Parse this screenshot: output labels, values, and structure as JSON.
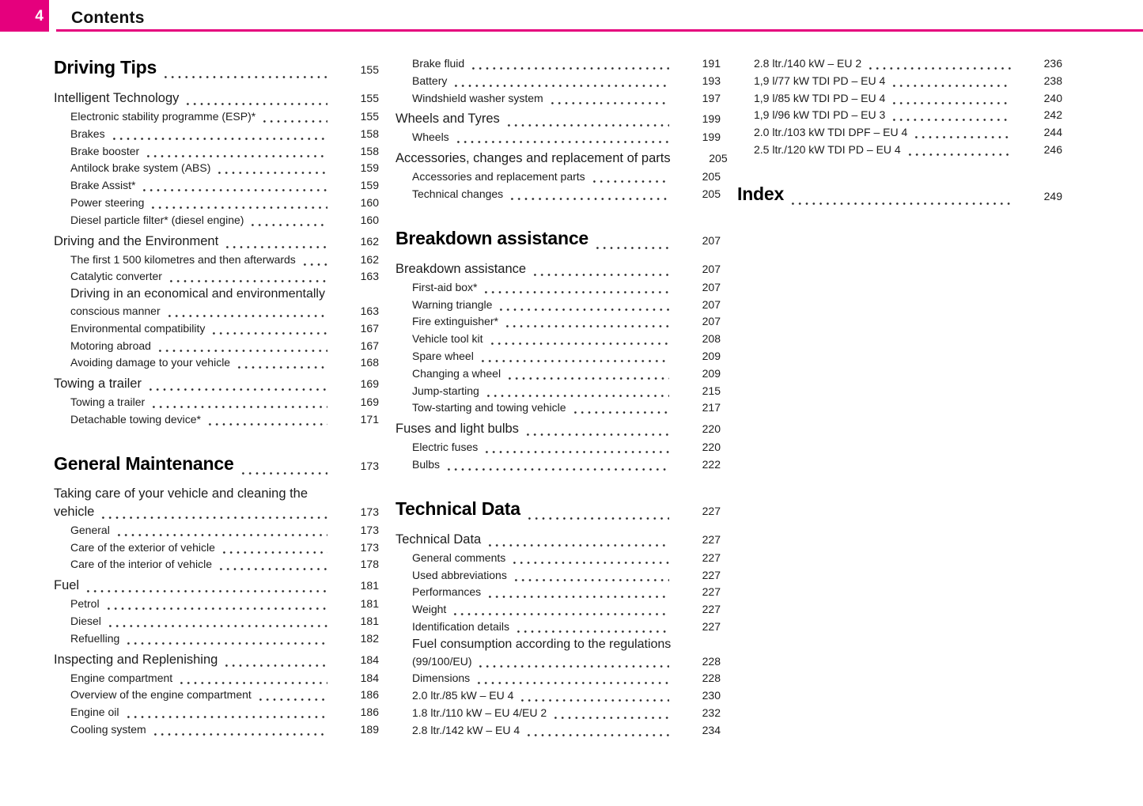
{
  "theme": {
    "accent_color": "#e5007d",
    "text_color": "#1c1c1c",
    "heading_color": "#000000",
    "page_background": "#ffffff"
  },
  "header": {
    "page_number": "4",
    "title": "Contents"
  },
  "columns": [
    {
      "entries": [
        {
          "style": "h1",
          "text": "Driving Tips",
          "page": "155"
        },
        {
          "style": "sec",
          "text": "Intelligent Technology",
          "page": "155"
        },
        {
          "style": "it",
          "text": "Electronic stability programme (ESP)*",
          "page": "155"
        },
        {
          "style": "it",
          "text": "Brakes",
          "page": "158"
        },
        {
          "style": "it",
          "text": "Brake booster",
          "page": "158"
        },
        {
          "style": "it",
          "text": "Antilock brake system (ABS)",
          "page": "159"
        },
        {
          "style": "it",
          "text": "Brake Assist*",
          "page": "159"
        },
        {
          "style": "it",
          "text": "Power steering",
          "page": "160"
        },
        {
          "style": "it",
          "text": "Diesel particle filter* (diesel engine)",
          "page": "160"
        },
        {
          "style": "sec",
          "text": "Driving and the Environment",
          "page": "162"
        },
        {
          "style": "it",
          "text": "The first 1 500 kilometres and then afterwards",
          "page": "162"
        },
        {
          "style": "it",
          "text": "Catalytic converter",
          "page": "163"
        },
        {
          "style": "it",
          "line1": "Driving in an economical and environmentally",
          "text": "conscious manner",
          "page": "163"
        },
        {
          "style": "it",
          "text": "Environmental compatibility",
          "page": "167"
        },
        {
          "style": "it",
          "text": "Motoring abroad",
          "page": "167"
        },
        {
          "style": "it",
          "text": "Avoiding damage to your vehicle",
          "page": "168"
        },
        {
          "style": "sec",
          "text": "Towing a trailer",
          "page": "169"
        },
        {
          "style": "it",
          "text": "Towing a trailer",
          "page": "169"
        },
        {
          "style": "it",
          "text": "Detachable towing device*",
          "page": "171"
        },
        {
          "style": "h1",
          "text": "General Maintenance",
          "page": "173"
        },
        {
          "style": "sec",
          "line1": "Taking care of your vehicle and cleaning the",
          "text": "vehicle",
          "page": "173"
        },
        {
          "style": "it",
          "text": "General",
          "page": "173"
        },
        {
          "style": "it",
          "text": "Care of the exterior of vehicle",
          "page": "173"
        },
        {
          "style": "it",
          "text": "Care of the interior of vehicle",
          "page": "178"
        },
        {
          "style": "sec",
          "text": "Fuel",
          "page": "181"
        },
        {
          "style": "it",
          "text": "Petrol",
          "page": "181"
        },
        {
          "style": "it",
          "text": "Diesel",
          "page": "181"
        },
        {
          "style": "it",
          "text": "Refuelling",
          "page": "182"
        },
        {
          "style": "sec",
          "text": "Inspecting and Replenishing",
          "page": "184"
        },
        {
          "style": "it",
          "text": "Engine compartment",
          "page": "184"
        },
        {
          "style": "it",
          "text": "Overview of the engine compartment",
          "page": "186"
        },
        {
          "style": "it",
          "text": "Engine oil",
          "page": "186"
        },
        {
          "style": "it",
          "text": "Cooling system",
          "page": "189"
        }
      ]
    },
    {
      "entries": [
        {
          "style": "it",
          "text": "Brake fluid",
          "page": "191"
        },
        {
          "style": "it",
          "text": "Battery",
          "page": "193"
        },
        {
          "style": "it",
          "text": "Windshield washer system",
          "page": "197"
        },
        {
          "style": "sec",
          "text": "Wheels and Tyres",
          "page": "199"
        },
        {
          "style": "it",
          "text": "Wheels",
          "page": "199"
        },
        {
          "style": "sec",
          "text": "Accessories, changes and replacement of parts",
          "page": "205"
        },
        {
          "style": "it",
          "text": "Accessories and replacement parts",
          "page": "205"
        },
        {
          "style": "it",
          "text": "Technical changes",
          "page": "205"
        },
        {
          "style": "h1",
          "text": "Breakdown assistance",
          "page": "207"
        },
        {
          "style": "sec",
          "text": "Breakdown assistance",
          "page": "207"
        },
        {
          "style": "it",
          "text": "First-aid box*",
          "page": "207"
        },
        {
          "style": "it",
          "text": "Warning triangle",
          "page": "207"
        },
        {
          "style": "it",
          "text": "Fire extinguisher*",
          "page": "207"
        },
        {
          "style": "it",
          "text": "Vehicle tool kit",
          "page": "208"
        },
        {
          "style": "it",
          "text": "Spare wheel",
          "page": "209"
        },
        {
          "style": "it",
          "text": "Changing a wheel",
          "page": "209"
        },
        {
          "style": "it",
          "text": "Jump-starting",
          "page": "215"
        },
        {
          "style": "it",
          "text": "Tow-starting and towing vehicle",
          "page": "217"
        },
        {
          "style": "sec",
          "text": "Fuses and light bulbs",
          "page": "220"
        },
        {
          "style": "it",
          "text": "Electric fuses",
          "page": "220"
        },
        {
          "style": "it",
          "text": "Bulbs",
          "page": "222"
        },
        {
          "style": "h1",
          "text": "Technical Data",
          "page": "227"
        },
        {
          "style": "sec",
          "text": "Technical Data",
          "page": "227"
        },
        {
          "style": "it",
          "text": "General comments",
          "page": "227"
        },
        {
          "style": "it",
          "text": "Used abbreviations",
          "page": "227"
        },
        {
          "style": "it",
          "text": "Performances",
          "page": "227"
        },
        {
          "style": "it",
          "text": "Weight",
          "page": "227"
        },
        {
          "style": "it",
          "text": "Identification details",
          "page": "227"
        },
        {
          "style": "it",
          "line1": "Fuel consumption according to the regulations",
          "text": "(99/100/EU)",
          "page": "228"
        },
        {
          "style": "it",
          "text": "Dimensions",
          "page": "228"
        },
        {
          "style": "it",
          "text": "2.0 ltr./85 kW – EU 4",
          "page": "230"
        },
        {
          "style": "it",
          "text": "1.8 ltr./110 kW – EU 4/EU 2",
          "page": "232"
        },
        {
          "style": "it",
          "text": "2.8 ltr./142 kW – EU 4",
          "page": "234"
        }
      ]
    },
    {
      "entries": [
        {
          "style": "it",
          "text": "2.8 ltr./140 kW – EU 2",
          "page": "236"
        },
        {
          "style": "it",
          "text": "1,9 l/77 kW TDI PD – EU 4",
          "page": "238"
        },
        {
          "style": "it",
          "text": "1,9 l/85 kW TDI PD – EU 4",
          "page": "240"
        },
        {
          "style": "it",
          "text": "1,9 l/96 kW TDI PD – EU 3",
          "page": "242"
        },
        {
          "style": "it",
          "text": "2.0 ltr./103 kW TDI DPF – EU 4",
          "page": "244"
        },
        {
          "style": "it",
          "text": "2.5 ltr./120 kW TDI PD – EU 4",
          "page": "246"
        },
        {
          "style": "h1",
          "text": "Index",
          "page": "249"
        }
      ]
    }
  ]
}
